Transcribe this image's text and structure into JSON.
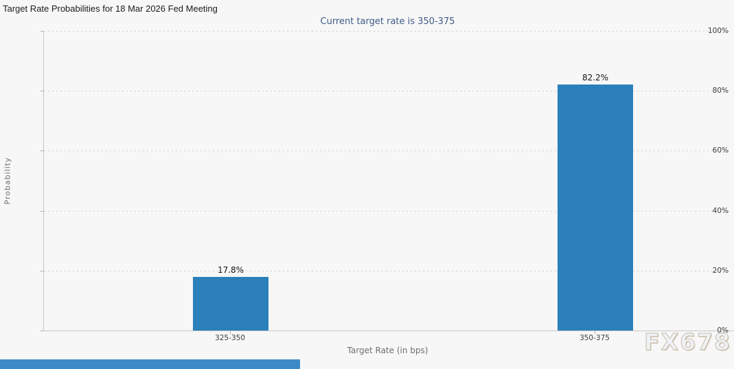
{
  "title": "Target Rate Probabilities for 18 Mar 2026 Fed Meeting",
  "subtitle": "Current target rate is 350-375",
  "watermark": "FX678",
  "colors": {
    "background": "#f7f7f7",
    "bar": "#2b7fba",
    "subtitle_text": "#3d5a85",
    "gridline": "#cfcfcf",
    "axis_line": "#c6c6c6",
    "bottom_strip": "#3e8ac6"
  },
  "chart_data": {
    "type": "bar",
    "title": "Target Rate Probabilities for 18 Mar 2026 Fed Meeting",
    "subtitle": "Current target rate is 350-375",
    "categories": [
      "325-350",
      "350-375"
    ],
    "values": [
      17.8,
      82.2
    ],
    "value_labels": [
      "17.8%",
      "82.2%"
    ],
    "xlabel": "Target Rate (in bps)",
    "ylabel": "Probability",
    "ylim": [
      0,
      100
    ],
    "yticks": [
      0,
      20,
      40,
      60,
      80,
      100
    ],
    "ytick_labels": [
      "0%",
      "20%",
      "40%",
      "60%",
      "80%",
      "100%"
    ],
    "grid": "horizontal-dotted",
    "legend": "none",
    "bar_color": "#2b7fba"
  }
}
